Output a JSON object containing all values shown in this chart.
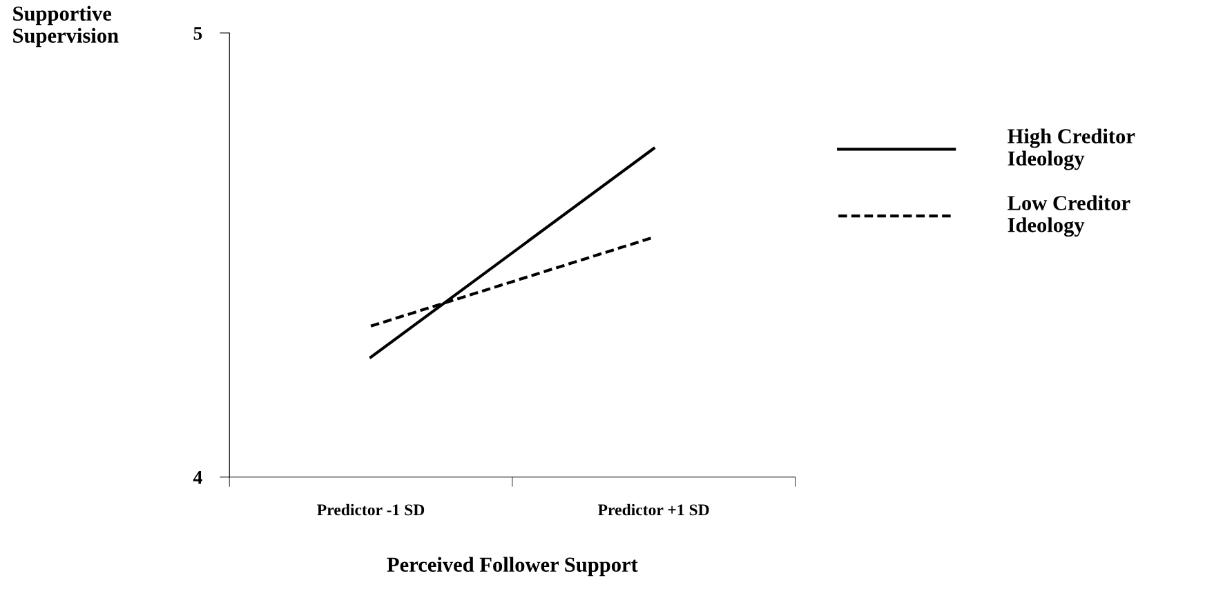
{
  "chart_data": {
    "type": "line",
    "xlabel": "Perceived Follower Support",
    "ylabel": "Supportive\nSupervision",
    "categories": [
      "Predictor -1 SD",
      "Predictor +1 SD"
    ],
    "series": [
      {
        "name": "High Creditor\nIdeology",
        "color": "#000000",
        "line_style": "solid",
        "values": [
          4.27,
          4.74
        ]
      },
      {
        "name": "Low Creditor\nIdeology",
        "color": "#000000",
        "line_style": "dashed",
        "values": [
          4.34,
          4.54
        ]
      }
    ],
    "ylim": [
      4,
      5
    ],
    "yticks": [
      4,
      5
    ],
    "grid": false,
    "legend": "right",
    "marker": "none"
  }
}
